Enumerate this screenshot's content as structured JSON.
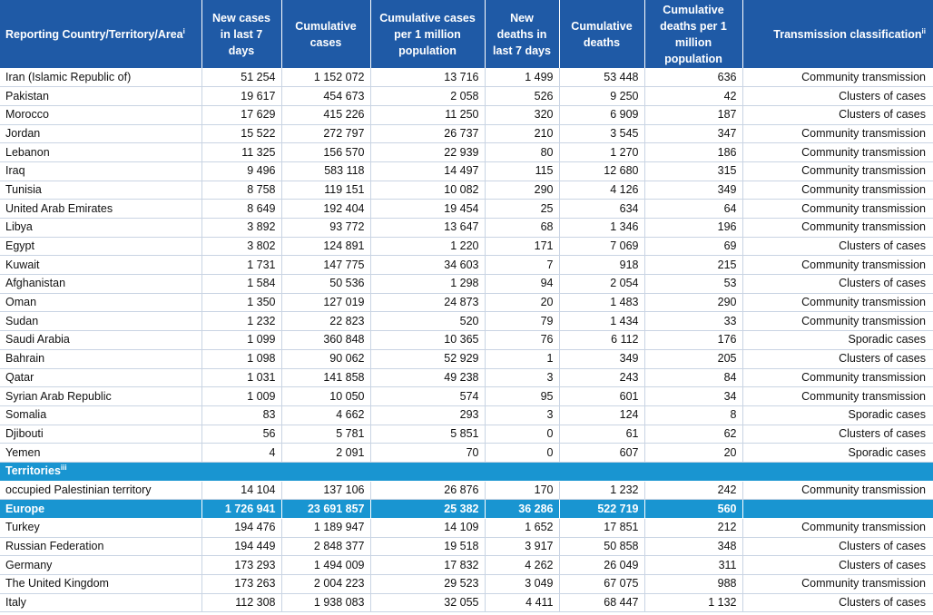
{
  "header": {
    "country": "Reporting Country/Territory/Area",
    "country_note": "i",
    "new_cases": "New cases in last 7 days",
    "cum_cases": "Cumulative cases",
    "cum_cases_per_million": "Cumulative cases per 1 million population",
    "new_deaths": "New deaths in last 7 days",
    "cum_deaths": "Cumulative deaths",
    "cum_deaths_per_million": "Cumulative deaths per 1 million population",
    "transmission": "Transmission classification",
    "transmission_note": "ii"
  },
  "rows": [
    {
      "country": "Iran (Islamic Republic of)",
      "new_cases": "51 254",
      "cum_cases": "1 152 072",
      "cum_cases_pm": "13 716",
      "new_deaths": "1 499",
      "cum_deaths": "53 448",
      "cum_deaths_pm": "636",
      "transmission": "Community transmission"
    },
    {
      "country": "Pakistan",
      "new_cases": "19 617",
      "cum_cases": "454 673",
      "cum_cases_pm": "2 058",
      "new_deaths": "526",
      "cum_deaths": "9 250",
      "cum_deaths_pm": "42",
      "transmission": "Clusters of cases"
    },
    {
      "country": "Morocco",
      "new_cases": "17 629",
      "cum_cases": "415 226",
      "cum_cases_pm": "11 250",
      "new_deaths": "320",
      "cum_deaths": "6 909",
      "cum_deaths_pm": "187",
      "transmission": "Clusters of cases"
    },
    {
      "country": "Jordan",
      "new_cases": "15 522",
      "cum_cases": "272 797",
      "cum_cases_pm": "26 737",
      "new_deaths": "210",
      "cum_deaths": "3 545",
      "cum_deaths_pm": "347",
      "transmission": "Community transmission"
    },
    {
      "country": "Lebanon",
      "new_cases": "11 325",
      "cum_cases": "156 570",
      "cum_cases_pm": "22 939",
      "new_deaths": "80",
      "cum_deaths": "1 270",
      "cum_deaths_pm": "186",
      "transmission": "Community transmission"
    },
    {
      "country": "Iraq",
      "new_cases": "9 496",
      "cum_cases": "583 118",
      "cum_cases_pm": "14 497",
      "new_deaths": "115",
      "cum_deaths": "12 680",
      "cum_deaths_pm": "315",
      "transmission": "Community transmission"
    },
    {
      "country": "Tunisia",
      "new_cases": "8 758",
      "cum_cases": "119 151",
      "cum_cases_pm": "10 082",
      "new_deaths": "290",
      "cum_deaths": "4 126",
      "cum_deaths_pm": "349",
      "transmission": "Community transmission"
    },
    {
      "country": "United Arab Emirates",
      "new_cases": "8 649",
      "cum_cases": "192 404",
      "cum_cases_pm": "19 454",
      "new_deaths": "25",
      "cum_deaths": "634",
      "cum_deaths_pm": "64",
      "transmission": "Community transmission"
    },
    {
      "country": "Libya",
      "new_cases": "3 892",
      "cum_cases": "93 772",
      "cum_cases_pm": "13 647",
      "new_deaths": "68",
      "cum_deaths": "1 346",
      "cum_deaths_pm": "196",
      "transmission": "Community transmission"
    },
    {
      "country": "Egypt",
      "new_cases": "3 802",
      "cum_cases": "124 891",
      "cum_cases_pm": "1 220",
      "new_deaths": "171",
      "cum_deaths": "7 069",
      "cum_deaths_pm": "69",
      "transmission": "Clusters of cases"
    },
    {
      "country": "Kuwait",
      "new_cases": "1 731",
      "cum_cases": "147 775",
      "cum_cases_pm": "34 603",
      "new_deaths": "7",
      "cum_deaths": "918",
      "cum_deaths_pm": "215",
      "transmission": "Community transmission"
    },
    {
      "country": "Afghanistan",
      "new_cases": "1 584",
      "cum_cases": "50 536",
      "cum_cases_pm": "1 298",
      "new_deaths": "94",
      "cum_deaths": "2 054",
      "cum_deaths_pm": "53",
      "transmission": "Clusters of cases"
    },
    {
      "country": "Oman",
      "new_cases": "1 350",
      "cum_cases": "127 019",
      "cum_cases_pm": "24 873",
      "new_deaths": "20",
      "cum_deaths": "1 483",
      "cum_deaths_pm": "290",
      "transmission": "Community transmission"
    },
    {
      "country": "Sudan",
      "new_cases": "1 232",
      "cum_cases": "22 823",
      "cum_cases_pm": "520",
      "new_deaths": "79",
      "cum_deaths": "1 434",
      "cum_deaths_pm": "33",
      "transmission": "Community transmission"
    },
    {
      "country": "Saudi Arabia",
      "new_cases": "1 099",
      "cum_cases": "360 848",
      "cum_cases_pm": "10 365",
      "new_deaths": "76",
      "cum_deaths": "6 112",
      "cum_deaths_pm": "176",
      "transmission": "Sporadic cases"
    },
    {
      "country": "Bahrain",
      "new_cases": "1 098",
      "cum_cases": "90 062",
      "cum_cases_pm": "52 929",
      "new_deaths": "1",
      "cum_deaths": "349",
      "cum_deaths_pm": "205",
      "transmission": "Clusters of cases"
    },
    {
      "country": "Qatar",
      "new_cases": "1 031",
      "cum_cases": "141 858",
      "cum_cases_pm": "49 238",
      "new_deaths": "3",
      "cum_deaths": "243",
      "cum_deaths_pm": "84",
      "transmission": "Community transmission"
    },
    {
      "country": "Syrian Arab Republic",
      "new_cases": "1 009",
      "cum_cases": "10 050",
      "cum_cases_pm": "574",
      "new_deaths": "95",
      "cum_deaths": "601",
      "cum_deaths_pm": "34",
      "transmission": "Community transmission"
    },
    {
      "country": "Somalia",
      "new_cases": "83",
      "cum_cases": "4 662",
      "cum_cases_pm": "293",
      "new_deaths": "3",
      "cum_deaths": "124",
      "cum_deaths_pm": "8",
      "transmission": "Sporadic cases"
    },
    {
      "country": "Djibouti",
      "new_cases": "56",
      "cum_cases": "5 781",
      "cum_cases_pm": "5 851",
      "new_deaths": "0",
      "cum_deaths": "61",
      "cum_deaths_pm": "62",
      "transmission": "Clusters of cases"
    },
    {
      "country": "Yemen",
      "new_cases": "4",
      "cum_cases": "2 091",
      "cum_cases_pm": "70",
      "new_deaths": "0",
      "cum_deaths": "607",
      "cum_deaths_pm": "20",
      "transmission": "Sporadic cases"
    },
    {
      "type": "section",
      "country": "Territories",
      "note": "iii"
    },
    {
      "country": "occupied Palestinian territory",
      "new_cases": "14 104",
      "cum_cases": "137 106",
      "cum_cases_pm": "26 876",
      "new_deaths": "170",
      "cum_deaths": "1 232",
      "cum_deaths_pm": "242",
      "transmission": "Community transmission"
    },
    {
      "type": "region",
      "country": "Europe",
      "new_cases": "1 726 941",
      "cum_cases": "23 691 857",
      "cum_cases_pm": "25 382",
      "new_deaths": "36 286",
      "cum_deaths": "522 719",
      "cum_deaths_pm": "560",
      "transmission": ""
    },
    {
      "country": "Turkey",
      "new_cases": "194 476",
      "cum_cases": "1 189 947",
      "cum_cases_pm": "14 109",
      "new_deaths": "1 652",
      "cum_deaths": "17 851",
      "cum_deaths_pm": "212",
      "transmission": "Community transmission"
    },
    {
      "country": "Russian Federation",
      "new_cases": "194 449",
      "cum_cases": "2 848 377",
      "cum_cases_pm": "19 518",
      "new_deaths": "3 917",
      "cum_deaths": "50 858",
      "cum_deaths_pm": "348",
      "transmission": "Clusters of cases"
    },
    {
      "country": "Germany",
      "new_cases": "173 293",
      "cum_cases": "1 494 009",
      "cum_cases_pm": "17 832",
      "new_deaths": "4 262",
      "cum_deaths": "26 049",
      "cum_deaths_pm": "311",
      "transmission": "Clusters of cases"
    },
    {
      "country": "The United Kingdom",
      "new_cases": "173 263",
      "cum_cases": "2 004 223",
      "cum_cases_pm": "29 523",
      "new_deaths": "3 049",
      "cum_deaths": "67 075",
      "cum_deaths_pm": "988",
      "transmission": "Community transmission"
    },
    {
      "country": "Italy",
      "new_cases": "112 308",
      "cum_cases": "1 938 083",
      "cum_cases_pm": "32 055",
      "new_deaths": "4 411",
      "cum_deaths": "68 447",
      "cum_deaths_pm": "1 132",
      "transmission": "Clusters of cases"
    }
  ]
}
